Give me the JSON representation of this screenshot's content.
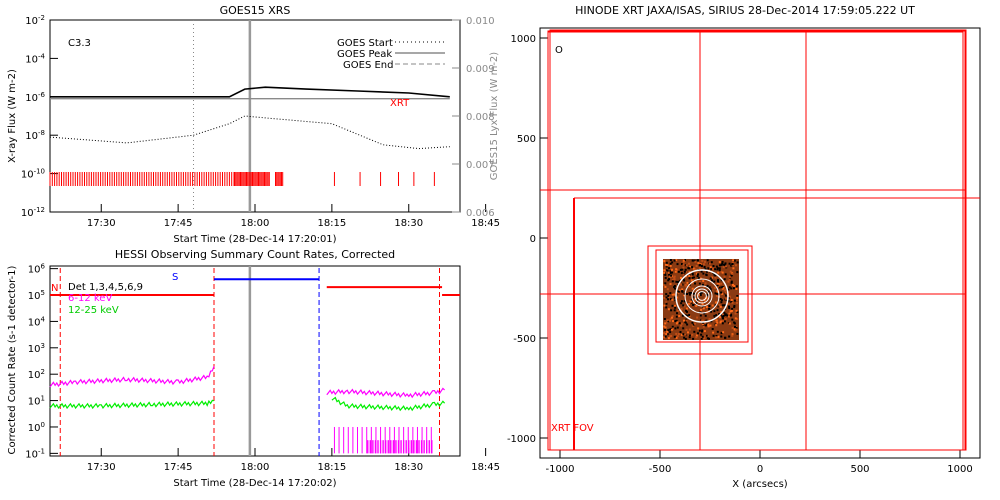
{
  "chart_data": [
    {
      "type": "line",
      "title": "GOES15 XRS",
      "xlabel": "Start Time (28-Dec-14 17:20:01)",
      "ylabel": "X-ray Flux (W m-2)",
      "ylabel_right": "GOES15 Lyx Flux (W m-2)",
      "xticks": [
        "17:30",
        "17:45",
        "18:00",
        "18:15",
        "18:30",
        "18:45"
      ],
      "yticks_left": [
        "10^-12",
        "10^-10",
        "10^-8",
        "10^-6",
        "10^-4",
        "10^-2"
      ],
      "yticks_right": [
        "0.006",
        "0.007",
        "0.008",
        "0.009",
        "0.010"
      ],
      "class_label": "C3.3",
      "legend": [
        {
          "name": "GOES Start",
          "style": "dotted"
        },
        {
          "name": "GOES Peak",
          "style": "solid"
        },
        {
          "name": "GOES End",
          "style": "dashed"
        }
      ],
      "xrt_label": "XRT",
      "time_range_min": [
        20,
        100
      ],
      "start_min": 48,
      "peak_min": 59,
      "series": [
        {
          "name": "long channel",
          "log_flux": [
            [
              20,
              -6.0
            ],
            [
              40,
              -6.0
            ],
            [
              55,
              -6.0
            ],
            [
              58,
              -5.6
            ],
            [
              62,
              -5.5
            ],
            [
              70,
              -5.6
            ],
            [
              80,
              -5.7
            ],
            [
              90,
              -5.8
            ],
            [
              98,
              -6.0
            ]
          ]
        },
        {
          "name": "short channel",
          "log_flux": [
            [
              20,
              -8.1
            ],
            [
              35,
              -8.4
            ],
            [
              48,
              -8.0
            ],
            [
              55,
              -7.4
            ],
            [
              58,
              -7.0
            ],
            [
              62,
              -7.1
            ],
            [
              75,
              -7.4
            ],
            [
              85,
              -8.5
            ],
            [
              92,
              -8.7
            ],
            [
              98,
              -8.6
            ]
          ]
        },
        {
          "name": "Lyx",
          "log_flux": [
            [
              20,
              -6.1
            ],
            [
              98,
              -6.1
            ]
          ]
        }
      ],
      "xrt_obs_min": [
        [
          20,
          56
        ],
        [
          56,
          63
        ],
        [
          64,
          65.5
        ],
        [
          75.5,
          75.5
        ],
        [
          80.5,
          80.5
        ],
        [
          84.5,
          84.5
        ],
        [
          88,
          88
        ],
        [
          91,
          91
        ],
        [
          95,
          95
        ]
      ]
    },
    {
      "type": "line",
      "title": "HESSI Observing Summary Count Rates, Corrected",
      "xlabel": "Start Time (28-Dec-14 17:20:02)",
      "ylabel": "Corrected Count Rate (s-1 detector-1)",
      "xticks": [
        "17:30",
        "17:45",
        "18:00",
        "18:15",
        "18:30",
        "18:45"
      ],
      "yticks": [
        "10^-1",
        "10^0",
        "10^1",
        "10^2",
        "10^3",
        "10^4",
        "10^5",
        "10^6"
      ],
      "flag_N": "N",
      "flag_S": "S",
      "detectors": "Det 1,3,4,5,6,9",
      "legend": [
        {
          "name": "6-12 keV",
          "color": "#ff00ff"
        },
        {
          "name": "12-25 keV",
          "color": "#00ff00"
        }
      ],
      "series": [
        {
          "name": "6-12 keV",
          "log_rate": [
            [
              20,
              1.6
            ],
            [
              25,
              1.7
            ],
            [
              35,
              1.8
            ],
            [
              45,
              1.7
            ],
            [
              51,
              1.9
            ],
            [
              52,
              2.3
            ]
          ]
        },
        {
          "name": "12-25 keV",
          "log_rate": [
            [
              20,
              0.8
            ],
            [
              30,
              0.8
            ],
            [
              40,
              0.85
            ],
            [
              51,
              0.9
            ],
            [
              52,
              1.0
            ]
          ]
        },
        {
          "name": "6-12 keV post",
          "log_rate": [
            [
              74,
              1.3
            ],
            [
              78,
              1.35
            ],
            [
              90,
              1.2
            ],
            [
              95,
              1.3
            ],
            [
              97,
              1.4
            ]
          ]
        },
        {
          "name": "12-25 keV post",
          "log_rate": [
            [
              75,
              1.1
            ],
            [
              78,
              0.8
            ],
            [
              90,
              0.7
            ],
            [
              95,
              0.85
            ],
            [
              97,
              0.9
            ]
          ]
        }
      ],
      "attenuator_bars": [
        {
          "color": "#ff0000",
          "from_min": 20,
          "to_min": 52,
          "log_rate": 5.0
        },
        {
          "color": "#0000ff",
          "from_min": 52,
          "to_min": 72.5,
          "log_rate": 5.6
        },
        {
          "color": "#ff0000",
          "from_min": 74,
          "to_min": 96.5,
          "log_rate": 5.3
        },
        {
          "color": "#ff0000",
          "from_min": 96.5,
          "to_min": 100,
          "log_rate": 5.0
        }
      ],
      "night_lines_min": [
        {
          "min": 22,
          "color": "#ff0000"
        },
        {
          "min": 52,
          "color": "#ff0000"
        },
        {
          "min": 72.5,
          "color": "#0000ff"
        },
        {
          "min": 96,
          "color": "#ff0000"
        }
      ],
      "peak_min": 59
    },
    {
      "type": "scatter",
      "title": "HINODE XRT JAXA/ISAS, SIRIUS 28-Dec-2014 17:59:05.222 UT",
      "xlabel": "X (arcsecs)",
      "ylabel": "",
      "xticks": [
        -1000,
        -500,
        0,
        500,
        1000
      ],
      "yticks": [
        -1000,
        -500,
        0,
        500,
        1000
      ],
      "xlim": [
        -1100,
        1100
      ],
      "ylim": [
        -1100,
        1050
      ],
      "circle_marker": "O",
      "fov_label": "XRT FOV",
      "fov_boxes": [
        {
          "x0": -1050,
          "y0": -1060,
          "x1": 1030,
          "y1": 1040
        },
        {
          "x0": -1060,
          "y0": -1060,
          "x1": 1025,
          "y1": 1035
        },
        {
          "x0": -1060,
          "y0": -1060,
          "x1": 1015,
          "y1": 1030
        }
      ],
      "fov_lines": {
        "vertical": [
          -300,
          230,
          -930
        ],
        "horizontal": [
          240,
          -280,
          200
        ]
      },
      "image_box": {
        "x0": -485,
        "y0": -510,
        "x1": -105,
        "y1": -105
      },
      "sub_boxes": [
        {
          "x0": -560,
          "y0": -580,
          "x1": -40,
          "y1": -40
        },
        {
          "x0": -520,
          "y0": -520,
          "x1": -60,
          "y1": -60
        },
        {
          "x0": -480,
          "y0": -500,
          "x1": -150,
          "y1": -120
        }
      ],
      "source_center": [
        -290,
        -290
      ],
      "contour_radii": [
        130,
        85,
        50,
        35,
        22
      ]
    }
  ]
}
